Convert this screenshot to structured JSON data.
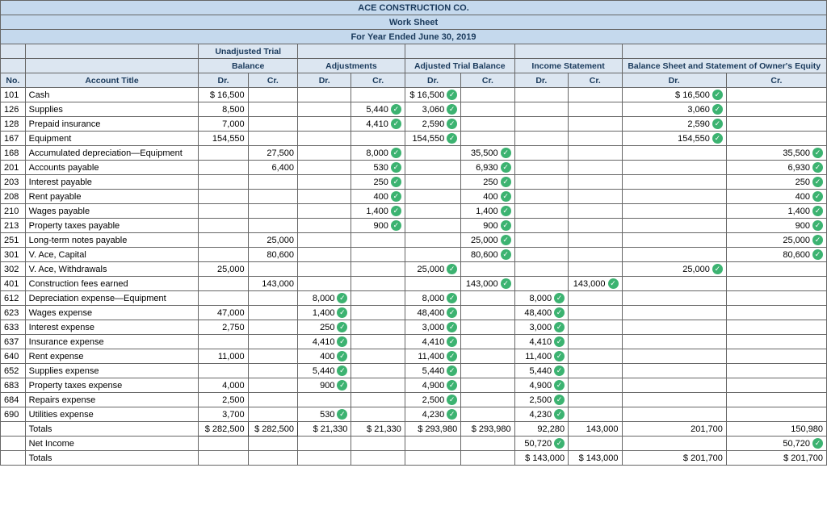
{
  "header": {
    "company": "ACE CONSTRUCTION CO.",
    "doc": "Work Sheet",
    "period": "For Year Ended June 30, 2019"
  },
  "group_headers": {
    "unadj": "Unadjusted Trial",
    "balance": "Balance",
    "adj": "Adjustments",
    "atb": "Adjusted Trial Balance",
    "inc": "Income Statement",
    "bs": "Balance Sheet and Statement of Owner's Equity"
  },
  "col_headers": {
    "no": "No.",
    "acct": "Account Title",
    "dr": "Dr.",
    "cr": "Cr."
  },
  "rows": [
    {
      "no": "101",
      "acct": "Cash",
      "utb_dr": "$ 16,500",
      "utb_cr": "",
      "adj_dr": "",
      "adj_cr": "",
      "atb_dr": "$    16,500",
      "atb_dr_ck": true,
      "atb_cr": "",
      "inc_dr": "",
      "inc_cr": "",
      "bs_dr": "$    16,500",
      "bs_dr_ck": true,
      "bs_cr": ""
    },
    {
      "no": "126",
      "acct": "Supplies",
      "utb_dr": "8,500",
      "utb_cr": "",
      "adj_dr": "",
      "adj_cr": "5,440",
      "adj_cr_ck": true,
      "atb_dr": "3,060",
      "atb_dr_ck": true,
      "atb_cr": "",
      "inc_dr": "",
      "inc_cr": "",
      "bs_dr": "3,060",
      "bs_dr_ck": true,
      "bs_cr": ""
    },
    {
      "no": "128",
      "acct": "Prepaid insurance",
      "utb_dr": "7,000",
      "utb_cr": "",
      "adj_dr": "",
      "adj_cr": "4,410",
      "adj_cr_ck": true,
      "atb_dr": "2,590",
      "atb_dr_ck": true,
      "atb_cr": "",
      "inc_dr": "",
      "inc_cr": "",
      "bs_dr": "2,590",
      "bs_dr_ck": true,
      "bs_cr": ""
    },
    {
      "no": "167",
      "acct": "Equipment",
      "utb_dr": "154,550",
      "utb_cr": "",
      "adj_dr": "",
      "adj_cr": "",
      "atb_dr": "154,550",
      "atb_dr_ck": true,
      "atb_cr": "",
      "inc_dr": "",
      "inc_cr": "",
      "bs_dr": "154,550",
      "bs_dr_ck": true,
      "bs_cr": ""
    },
    {
      "no": "168",
      "acct": "Accumulated depreciation—Equipment",
      "utb_dr": "",
      "utb_cr": "27,500",
      "adj_dr": "",
      "adj_cr": "8,000",
      "adj_cr_ck": true,
      "atb_dr": "",
      "atb_cr": "35,500",
      "atb_cr_ck": true,
      "inc_dr": "",
      "inc_cr": "",
      "bs_dr": "",
      "bs_cr": "35,500",
      "bs_cr_ck": true
    },
    {
      "no": "201",
      "acct": "Accounts payable",
      "utb_dr": "",
      "utb_cr": "6,400",
      "adj_dr": "",
      "adj_cr": "530",
      "adj_cr_ck": true,
      "atb_dr": "",
      "atb_cr": "6,930",
      "atb_cr_ck": true,
      "inc_dr": "",
      "inc_cr": "",
      "bs_dr": "",
      "bs_cr": "6,930",
      "bs_cr_ck": true
    },
    {
      "no": "203",
      "acct": "Interest payable",
      "utb_dr": "",
      "utb_cr": "",
      "adj_dr": "",
      "adj_cr": "250",
      "adj_cr_ck": true,
      "atb_dr": "",
      "atb_cr": "250",
      "atb_cr_ck": true,
      "inc_dr": "",
      "inc_cr": "",
      "bs_dr": "",
      "bs_cr": "250",
      "bs_cr_ck": true
    },
    {
      "no": "208",
      "acct": "Rent payable",
      "utb_dr": "",
      "utb_cr": "",
      "adj_dr": "",
      "adj_cr": "400",
      "adj_cr_ck": true,
      "atb_dr": "",
      "atb_cr": "400",
      "atb_cr_ck": true,
      "inc_dr": "",
      "inc_cr": "",
      "bs_dr": "",
      "bs_cr": "400",
      "bs_cr_ck": true
    },
    {
      "no": "210",
      "acct": "Wages payable",
      "utb_dr": "",
      "utb_cr": "",
      "adj_dr": "",
      "adj_cr": "1,400",
      "adj_cr_ck": true,
      "atb_dr": "",
      "atb_cr": "1,400",
      "atb_cr_ck": true,
      "inc_dr": "",
      "inc_cr": "",
      "bs_dr": "",
      "bs_cr": "1,400",
      "bs_cr_ck": true
    },
    {
      "no": "213",
      "acct": "Property taxes payable",
      "utb_dr": "",
      "utb_cr": "",
      "adj_dr": "",
      "adj_cr": "900",
      "adj_cr_ck": true,
      "atb_dr": "",
      "atb_cr": "900",
      "atb_cr_ck": true,
      "inc_dr": "",
      "inc_cr": "",
      "bs_dr": "",
      "bs_cr": "900",
      "bs_cr_ck": true
    },
    {
      "no": "251",
      "acct": "Long-term notes payable",
      "utb_dr": "",
      "utb_cr": "25,000",
      "adj_dr": "",
      "adj_cr": "",
      "atb_dr": "",
      "atb_cr": "25,000",
      "atb_cr_ck": true,
      "inc_dr": "",
      "inc_cr": "",
      "bs_dr": "",
      "bs_cr": "25,000",
      "bs_cr_ck": true
    },
    {
      "no": "301",
      "acct": "V. Ace, Capital",
      "utb_dr": "",
      "utb_cr": "80,600",
      "adj_dr": "",
      "adj_cr": "",
      "atb_dr": "",
      "atb_cr": "80,600",
      "atb_cr_ck": true,
      "inc_dr": "",
      "inc_cr": "",
      "bs_dr": "",
      "bs_cr": "80,600",
      "bs_cr_ck": true
    },
    {
      "no": "302",
      "acct": "V. Ace, Withdrawals",
      "utb_dr": "25,000",
      "utb_cr": "",
      "adj_dr": "",
      "adj_cr": "",
      "atb_dr": "25,000",
      "atb_dr_ck": true,
      "atb_cr": "",
      "inc_dr": "",
      "inc_cr": "",
      "bs_dr": "25,000",
      "bs_dr_ck": true,
      "bs_cr": ""
    },
    {
      "no": "401",
      "acct": "Construction fees earned",
      "utb_dr": "",
      "utb_cr": "143,000",
      "adj_dr": "",
      "adj_cr": "",
      "atb_dr": "",
      "atb_cr": "143,000",
      "atb_cr_ck": true,
      "inc_dr": "",
      "inc_cr": "143,000",
      "inc_cr_ck": true,
      "bs_dr": "",
      "bs_cr": ""
    },
    {
      "no": "612",
      "acct": "Depreciation expense—Equipment",
      "utb_dr": "",
      "utb_cr": "",
      "adj_dr": "8,000",
      "adj_dr_ck": true,
      "adj_cr": "",
      "atb_dr": "8,000",
      "atb_dr_ck": true,
      "atb_cr": "",
      "inc_dr": "8,000",
      "inc_dr_ck": true,
      "inc_cr": "",
      "bs_dr": "",
      "bs_cr": ""
    },
    {
      "no": "623",
      "acct": "Wages expense",
      "utb_dr": "47,000",
      "utb_cr": "",
      "adj_dr": "1,400",
      "adj_dr_ck": true,
      "adj_cr": "",
      "atb_dr": "48,400",
      "atb_dr_ck": true,
      "atb_cr": "",
      "inc_dr": "48,400",
      "inc_dr_ck": true,
      "inc_cr": "",
      "bs_dr": "",
      "bs_cr": ""
    },
    {
      "no": "633",
      "acct": "Interest expense",
      "utb_dr": "2,750",
      "utb_cr": "",
      "adj_dr": "250",
      "adj_dr_ck": true,
      "adj_cr": "",
      "atb_dr": "3,000",
      "atb_dr_ck": true,
      "atb_cr": "",
      "inc_dr": "3,000",
      "inc_dr_ck": true,
      "inc_cr": "",
      "bs_dr": "",
      "bs_cr": ""
    },
    {
      "no": "637",
      "acct": "Insurance expense",
      "utb_dr": "",
      "utb_cr": "",
      "adj_dr": "4,410",
      "adj_dr_ck": true,
      "adj_cr": "",
      "atb_dr": "4,410",
      "atb_dr_ck": true,
      "atb_cr": "",
      "inc_dr": "4,410",
      "inc_dr_ck": true,
      "inc_cr": "",
      "bs_dr": "",
      "bs_cr": ""
    },
    {
      "no": "640",
      "acct": "Rent expense",
      "utb_dr": "11,000",
      "utb_cr": "",
      "adj_dr": "400",
      "adj_dr_ck": true,
      "adj_cr": "",
      "atb_dr": "11,400",
      "atb_dr_ck": true,
      "atb_cr": "",
      "inc_dr": "11,400",
      "inc_dr_ck": true,
      "inc_cr": "",
      "bs_dr": "",
      "bs_cr": ""
    },
    {
      "no": "652",
      "acct": "Supplies expense",
      "utb_dr": "",
      "utb_cr": "",
      "adj_dr": "5,440",
      "adj_dr_ck": true,
      "adj_cr": "",
      "atb_dr": "5,440",
      "atb_dr_ck": true,
      "atb_cr": "",
      "inc_dr": "5,440",
      "inc_dr_ck": true,
      "inc_cr": "",
      "bs_dr": "",
      "bs_cr": ""
    },
    {
      "no": "683",
      "acct": "Property taxes expense",
      "utb_dr": "4,000",
      "utb_cr": "",
      "adj_dr": "900",
      "adj_dr_ck": true,
      "adj_cr": "",
      "atb_dr": "4,900",
      "atb_dr_ck": true,
      "atb_cr": "",
      "inc_dr": "4,900",
      "inc_dr_ck": true,
      "inc_cr": "",
      "bs_dr": "",
      "bs_cr": ""
    },
    {
      "no": "684",
      "acct": "Repairs expense",
      "utb_dr": "2,500",
      "utb_cr": "",
      "adj_dr": "",
      "adj_cr": "",
      "atb_dr": "2,500",
      "atb_dr_ck": true,
      "atb_cr": "",
      "inc_dr": "2,500",
      "inc_dr_ck": true,
      "inc_cr": "",
      "bs_dr": "",
      "bs_cr": ""
    },
    {
      "no": "690",
      "acct": "Utilities expense",
      "utb_dr": "3,700",
      "utb_cr": "",
      "adj_dr": "530",
      "adj_dr_ck": true,
      "adj_cr": "",
      "atb_dr": "4,230",
      "atb_dr_ck": true,
      "atb_cr": "",
      "inc_dr": "4,230",
      "inc_dr_ck": true,
      "inc_cr": "",
      "bs_dr": "",
      "bs_cr": ""
    }
  ],
  "totals": {
    "label": "Totals",
    "utb_dr": "$\n282,500",
    "utb_cr": "$\n282,500",
    "adj_dr": "$ 21,330",
    "adj_cr": "$ 21,330",
    "atb_dr": "$   293,980",
    "atb_cr": "$   293,980",
    "inc_dr": "92,280",
    "inc_cr": "143,000",
    "bs_dr": "201,700",
    "bs_cr": "150,980"
  },
  "netincome": {
    "label": "Net Income",
    "inc_dr": "50,720",
    "inc_dr_ck": true,
    "bs_cr": "50,720",
    "bs_cr_ck": true
  },
  "totals2": {
    "label": "Totals",
    "inc_dr": "$  143,000",
    "inc_cr": "$  143,000",
    "bs_dr": "$  201,700",
    "bs_cr": "$  201,700"
  },
  "colors": {
    "header_bg": "#c5d9ed",
    "subheader_bg": "#dce6f1",
    "border": "#666666",
    "check_bg": "#3cb371",
    "text": "#000000",
    "header_text": "#1a3a5c"
  }
}
